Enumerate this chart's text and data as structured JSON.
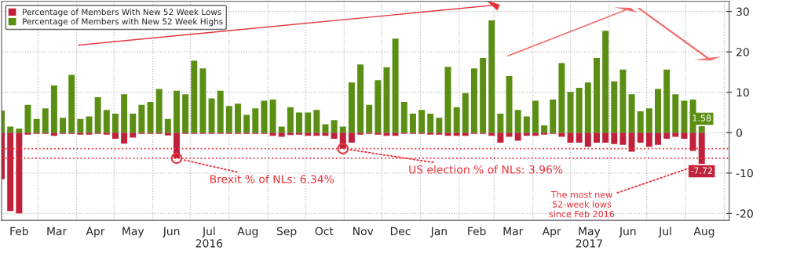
{
  "chart_data": {
    "type": "bar",
    "x": [
      "2016-02-01",
      "2016-02-08",
      "2016-02-15",
      "2016-02-22",
      "2016-02-29",
      "2016-03-07",
      "2016-03-14",
      "2016-03-21",
      "2016-03-28",
      "2016-04-04",
      "2016-04-11",
      "2016-04-18",
      "2016-04-25",
      "2016-05-02",
      "2016-05-09",
      "2016-05-16",
      "2016-05-23",
      "2016-05-30",
      "2016-06-06",
      "2016-06-13",
      "2016-06-20",
      "2016-06-27",
      "2016-07-04",
      "2016-07-11",
      "2016-07-18",
      "2016-07-25",
      "2016-08-01",
      "2016-08-08",
      "2016-08-15",
      "2016-08-22",
      "2016-08-29",
      "2016-09-05",
      "2016-09-12",
      "2016-09-19",
      "2016-09-26",
      "2016-10-03",
      "2016-10-10",
      "2016-10-17",
      "2016-10-24",
      "2016-10-31",
      "2016-11-07",
      "2016-11-14",
      "2016-11-21",
      "2016-11-28",
      "2016-12-05",
      "2016-12-12",
      "2016-12-19",
      "2016-12-26",
      "2017-01-02",
      "2017-01-09",
      "2017-01-16",
      "2017-01-23",
      "2017-01-30",
      "2017-02-06",
      "2017-02-13",
      "2017-02-20",
      "2017-02-27",
      "2017-03-06",
      "2017-03-13",
      "2017-03-20",
      "2017-03-27",
      "2017-04-03",
      "2017-04-10",
      "2017-04-17",
      "2017-04-24",
      "2017-05-01",
      "2017-05-08",
      "2017-05-15",
      "2017-05-22",
      "2017-05-29",
      "2017-06-05",
      "2017-06-12",
      "2017-06-19",
      "2017-06-26",
      "2017-07-03",
      "2017-07-10",
      "2017-07-17",
      "2017-07-24",
      "2017-07-31",
      "2017-08-07",
      "2017-08-14"
    ],
    "series": [
      {
        "name": "Percentage of Members With New 52 Week Lows",
        "color": "#c0203a",
        "values": [
          -11.5,
          -19.4,
          -20.0,
          -0.5,
          -0.3,
          -0.3,
          -0.8,
          -0.3,
          -0.3,
          -0.5,
          -0.5,
          -0.3,
          -0.5,
          -1.5,
          -2.7,
          -1.2,
          -0.3,
          -0.3,
          -0.3,
          -0.7,
          -6.34,
          -0.3,
          -0.3,
          -0.3,
          -0.3,
          -0.3,
          -0.3,
          -0.3,
          -0.3,
          -0.3,
          -0.3,
          -0.8,
          -1.0,
          -0.6,
          -0.5,
          -0.8,
          -0.8,
          -0.8,
          -1.5,
          -3.96,
          -2.5,
          -0.5,
          -0.3,
          -0.5,
          -0.8,
          -0.8,
          -0.3,
          -0.3,
          -0.3,
          -0.5,
          -0.5,
          -0.8,
          -0.8,
          -0.8,
          -0.3,
          -0.3,
          -0.8,
          -2.5,
          -1.0,
          -2.0,
          -0.8,
          -0.8,
          -0.5,
          -0.3,
          -1.0,
          -2.5,
          -2.5,
          -3.5,
          -2.5,
          -2.5,
          -2.8,
          -3.0,
          -4.7,
          -2.5,
          -3.5,
          -3.0,
          -1.5,
          -1.0,
          -1.5,
          -4.5,
          -7.72
        ],
        "value_labels": [
          null,
          null,
          null,
          null,
          null,
          null,
          null,
          null,
          null,
          null,
          null,
          null,
          null,
          null,
          null,
          null,
          null,
          null,
          null,
          null,
          null,
          null,
          null,
          null,
          null,
          null,
          null,
          null,
          null,
          null,
          null,
          null,
          null,
          null,
          null,
          null,
          null,
          null,
          null,
          null,
          null,
          null,
          null,
          null,
          null,
          null,
          null,
          null,
          null,
          null,
          null,
          null,
          null,
          null,
          null,
          null,
          null,
          null,
          null,
          null,
          null,
          null,
          null,
          null,
          null,
          null,
          null,
          null,
          null,
          null,
          null,
          null,
          null,
          null,
          null,
          null,
          null,
          null,
          null,
          null,
          "-7.72"
        ]
      },
      {
        "name": "Percentage of Members with New 52 Week Highs",
        "color": "#5a8f13",
        "values": [
          5.5,
          1.5,
          1.0,
          6.9,
          3.4,
          6.0,
          11.7,
          3.7,
          14.3,
          3.4,
          4.0,
          8.8,
          5.6,
          4.7,
          9.5,
          4.7,
          6.9,
          7.6,
          10.8,
          3.4,
          10.4,
          9.5,
          17.8,
          15.9,
          8.5,
          10.4,
          6.6,
          7.2,
          4.4,
          6.0,
          7.9,
          8.2,
          1.5,
          6.3,
          5.0,
          5.0,
          5.6,
          2.1,
          3.1,
          1.5,
          12.4,
          16.9,
          6.9,
          13.0,
          16.2,
          23.3,
          7.6,
          4.7,
          5.6,
          4.7,
          3.7,
          16.3,
          6.3,
          9.8,
          15.9,
          18.5,
          27.8,
          4.7,
          14.0,
          5.6,
          4.0,
          7.9,
          1.8,
          8.2,
          17.2,
          10.1,
          11.1,
          12.4,
          18.5,
          25.2,
          12.7,
          15.6,
          9.5,
          5.3,
          6.0,
          10.8,
          15.6,
          9.5,
          7.9,
          8.2,
          1.58
        ],
        "value_labels": [
          null,
          null,
          null,
          null,
          null,
          null,
          null,
          null,
          null,
          null,
          null,
          null,
          null,
          null,
          null,
          null,
          null,
          null,
          null,
          null,
          null,
          null,
          null,
          null,
          null,
          null,
          null,
          null,
          null,
          null,
          null,
          null,
          null,
          null,
          null,
          null,
          null,
          null,
          null,
          null,
          null,
          null,
          null,
          null,
          null,
          null,
          null,
          null,
          null,
          null,
          null,
          null,
          null,
          null,
          null,
          null,
          null,
          null,
          null,
          null,
          null,
          null,
          null,
          null,
          null,
          null,
          null,
          null,
          null,
          null,
          null,
          null,
          null,
          null,
          null,
          null,
          null,
          null,
          null,
          null,
          "1.58"
        ]
      }
    ],
    "xlim": [
      "2016-02-01",
      "2017-09-05"
    ],
    "xticks": [
      {
        "value": "2016-02-15",
        "label": "Feb"
      },
      {
        "value": "2016-03-01",
        "label": null
      },
      {
        "value": "2016-03-16",
        "label": "Mar"
      },
      {
        "value": "2016-04-01",
        "label": null
      },
      {
        "value": "2016-04-16",
        "label": "Apr"
      },
      {
        "value": "2016-05-01",
        "label": null
      },
      {
        "value": "2016-05-16",
        "label": "May"
      },
      {
        "value": "2016-06-01",
        "label": null
      },
      {
        "value": "2016-06-16",
        "label": "Jun"
      },
      {
        "value": "2016-07-01",
        "label": null
      },
      {
        "value": "2016-07-16",
        "label": "Jul\n2016"
      },
      {
        "value": "2016-08-01",
        "label": null
      },
      {
        "value": "2016-08-16",
        "label": "Aug"
      },
      {
        "value": "2016-09-01",
        "label": null
      },
      {
        "value": "2016-09-16",
        "label": "Sep"
      },
      {
        "value": "2016-10-01",
        "label": null
      },
      {
        "value": "2016-10-16",
        "label": "Oct"
      },
      {
        "value": "2016-11-01",
        "label": null
      },
      {
        "value": "2016-11-16",
        "label": "Nov"
      },
      {
        "value": "2016-12-01",
        "label": null
      },
      {
        "value": "2016-12-16",
        "label": "Dec"
      },
      {
        "value": "2017-01-01",
        "label": null
      },
      {
        "value": "2017-01-16",
        "label": "Jan"
      },
      {
        "value": "2017-02-01",
        "label": null
      },
      {
        "value": "2017-02-15",
        "label": "Feb"
      },
      {
        "value": "2017-03-01",
        "label": null
      },
      {
        "value": "2017-03-16",
        "label": "Mar"
      },
      {
        "value": "2017-04-01",
        "label": null
      },
      {
        "value": "2017-04-16",
        "label": "Apr"
      },
      {
        "value": "2017-05-01",
        "label": null
      },
      {
        "value": "2017-05-16",
        "label": "May\n2017"
      },
      {
        "value": "2017-06-01",
        "label": null
      },
      {
        "value": "2017-06-16",
        "label": "Jun"
      },
      {
        "value": "2017-07-01",
        "label": null
      },
      {
        "value": "2017-07-16",
        "label": "Jul"
      },
      {
        "value": "2017-08-01",
        "label": null
      },
      {
        "value": "2017-08-16",
        "label": "Aug"
      },
      {
        "value": "2017-09-01",
        "label": null
      }
    ],
    "ylim": [
      -21.7,
      32.5
    ],
    "yticks": [
      -20,
      -10,
      0,
      10,
      20,
      30
    ],
    "ref_lines": [
      {
        "axis": "y",
        "value": -6.34,
        "label": null,
        "color": "#e8323c",
        "line_style": "dotted"
      },
      {
        "axis": "y",
        "value": -3.96,
        "label": null,
        "color": "#e8323c",
        "line_style": "dotted"
      }
    ],
    "annotations": [
      {
        "text": "Brexit % of NLs: 6.34%",
        "x": "2016-06-20",
        "y": -6.34
      },
      {
        "text": "US election % of NLs: 3.96%",
        "x": "2016-10-31",
        "y": -3.96
      },
      {
        "text": "The most new\n52-week lows\nsince Feb 2016",
        "x": "2017-08-14",
        "y": -7.72
      }
    ],
    "stacked": true,
    "grid": true,
    "legend": "top left"
  }
}
